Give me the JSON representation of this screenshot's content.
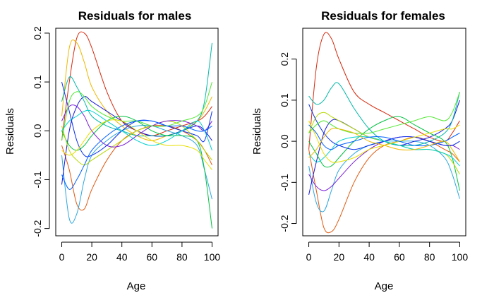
{
  "chart_data": [
    {
      "type": "line",
      "title": "Residuals for males",
      "xlabel": "Age",
      "ylabel": "Residuals",
      "xlim": [
        -4,
        104
      ],
      "ylim": [
        -0.215,
        0.21
      ],
      "xticks": [
        0,
        20,
        40,
        60,
        80,
        100
      ],
      "xtick_labels": [
        "0",
        "20",
        "40",
        "60",
        "80",
        "100"
      ],
      "yticks": [
        -0.2,
        -0.1,
        0.0,
        0.1,
        0.2
      ],
      "ytick_labels": [
        "-0.2",
        "-0.1",
        "0.0",
        "0.1",
        "0.2"
      ],
      "x": [
        0,
        5,
        10,
        15,
        20,
        30,
        40,
        50,
        60,
        70,
        80,
        90,
        95,
        100
      ],
      "series": [
        {
          "color": "#d62a0e",
          "values": [
            -0.02,
            0.1,
            0.19,
            0.2,
            0.17,
            0.08,
            0.02,
            0.0,
            -0.01,
            0.0,
            0.01,
            0.02,
            0.03,
            0.05
          ]
        },
        {
          "color": "#f0b800",
          "values": [
            0.03,
            0.17,
            0.18,
            0.14,
            0.09,
            0.04,
            0.01,
            -0.01,
            -0.02,
            -0.01,
            0.0,
            0.02,
            0.04,
            0.07
          ]
        },
        {
          "color": "#e05a10",
          "values": [
            -0.03,
            -0.08,
            -0.15,
            -0.16,
            -0.12,
            -0.06,
            -0.02,
            0.0,
            0.01,
            0.01,
            0.0,
            -0.02,
            -0.04,
            -0.07
          ]
        },
        {
          "color": "#2ba7e0",
          "values": [
            -0.05,
            -0.18,
            -0.17,
            -0.1,
            -0.05,
            -0.02,
            0.0,
            0.01,
            0.01,
            0.0,
            -0.01,
            -0.03,
            -0.08,
            -0.14
          ]
        },
        {
          "color": "#1515d8",
          "values": [
            -0.11,
            0.0,
            0.05,
            0.07,
            0.06,
            0.04,
            0.02,
            0.0,
            -0.01,
            -0.01,
            0.0,
            0.01,
            0.0,
            -0.02
          ]
        },
        {
          "color": "#00b8a8",
          "values": [
            0.06,
            0.11,
            0.09,
            0.06,
            0.03,
            0.01,
            0.0,
            -0.01,
            -0.01,
            -0.01,
            0.0,
            0.02,
            0.06,
            0.18
          ]
        },
        {
          "color": "#00c040",
          "values": [
            0.0,
            -0.03,
            -0.04,
            -0.03,
            -0.01,
            0.02,
            0.03,
            0.02,
            0.0,
            -0.01,
            -0.01,
            -0.02,
            -0.08,
            -0.2
          ]
        },
        {
          "color": "#b8d800",
          "values": [
            0.01,
            -0.04,
            -0.06,
            -0.07,
            -0.06,
            -0.04,
            -0.02,
            0.0,
            0.01,
            0.02,
            0.01,
            -0.02,
            -0.04,
            -0.06
          ]
        },
        {
          "color": "#7a20d8",
          "values": [
            0.02,
            0.05,
            0.05,
            0.03,
            0.0,
            -0.03,
            -0.03,
            -0.01,
            0.01,
            0.02,
            0.02,
            0.01,
            0.0,
            0.02
          ]
        },
        {
          "color": "#0a30e8",
          "values": [
            0.1,
            0.04,
            -0.02,
            -0.05,
            -0.05,
            -0.03,
            0.0,
            0.02,
            0.02,
            0.01,
            0.0,
            -0.01,
            -0.02,
            0.04
          ]
        },
        {
          "color": "#50e830",
          "values": [
            -0.02,
            0.06,
            0.08,
            0.07,
            0.05,
            0.03,
            0.02,
            0.02,
            0.01,
            0.01,
            0.02,
            0.03,
            0.05,
            0.1
          ]
        },
        {
          "color": "#00d0d0",
          "values": [
            0.0,
            0.02,
            0.03,
            0.04,
            0.04,
            0.02,
            0.0,
            -0.02,
            -0.03,
            -0.02,
            0.0,
            0.02,
            0.0,
            -0.04
          ]
        },
        {
          "color": "#e8e000",
          "values": [
            -0.04,
            -0.05,
            -0.04,
            -0.02,
            0.0,
            0.02,
            0.02,
            0.0,
            -0.02,
            -0.03,
            -0.03,
            -0.04,
            -0.06,
            -0.08
          ]
        },
        {
          "color": "#0060ff",
          "values": [
            -0.09,
            -0.12,
            -0.1,
            -0.07,
            -0.04,
            -0.01,
            0.01,
            0.02,
            0.02,
            0.01,
            0.01,
            0.0,
            0.0,
            0.01
          ]
        }
      ]
    },
    {
      "type": "line",
      "title": "Residuals for females",
      "xlabel": "Age",
      "ylabel": "Residuals",
      "xlim": [
        -4,
        104
      ],
      "ylim": [
        -0.23,
        0.275
      ],
      "xticks": [
        0,
        20,
        40,
        60,
        80,
        100
      ],
      "xtick_labels": [
        "0",
        "20",
        "40",
        "60",
        "80",
        "100"
      ],
      "yticks": [
        -0.2,
        -0.1,
        0.0,
        0.1,
        0.2
      ],
      "ytick_labels": [
        "-0.2",
        "-0.1",
        "0.0",
        "0.1",
        "0.2"
      ],
      "x": [
        0,
        5,
        10,
        15,
        20,
        30,
        40,
        50,
        60,
        70,
        80,
        90,
        95,
        100
      ],
      "series": [
        {
          "color": "#d62a0e",
          "values": [
            -0.02,
            0.18,
            0.26,
            0.25,
            0.2,
            0.12,
            0.09,
            0.07,
            0.05,
            0.03,
            0.01,
            0.0,
            0.02,
            0.05
          ]
        },
        {
          "color": "#e05a10",
          "values": [
            -0.02,
            -0.12,
            -0.21,
            -0.22,
            -0.19,
            -0.1,
            -0.04,
            -0.01,
            0.0,
            0.01,
            0.0,
            -0.02,
            -0.03,
            -0.05
          ]
        },
        {
          "color": "#2ba7e0",
          "values": [
            -0.06,
            -0.15,
            -0.17,
            -0.12,
            -0.07,
            -0.03,
            -0.01,
            0.0,
            0.0,
            0.0,
            -0.01,
            -0.04,
            -0.08,
            -0.14
          ]
        },
        {
          "color": "#1515d8",
          "values": [
            -0.13,
            -0.05,
            0.02,
            0.05,
            0.05,
            0.03,
            0.01,
            0.0,
            -0.01,
            0.0,
            0.01,
            0.03,
            0.05,
            0.1
          ]
        },
        {
          "color": "#00b8a8",
          "values": [
            0.11,
            0.09,
            0.1,
            0.13,
            0.14,
            0.08,
            0.03,
            0.0,
            -0.01,
            -0.01,
            0.0,
            0.02,
            0.05,
            0.12
          ]
        },
        {
          "color": "#00c040",
          "values": [
            0.0,
            -0.03,
            -0.06,
            -0.06,
            -0.04,
            0.0,
            0.03,
            0.05,
            0.06,
            0.04,
            0.02,
            0.0,
            -0.04,
            -0.12
          ]
        },
        {
          "color": "#b8d800",
          "values": [
            0.02,
            0.06,
            0.07,
            0.06,
            0.05,
            0.03,
            0.01,
            0.0,
            -0.01,
            -0.02,
            -0.02,
            -0.03,
            -0.05,
            -0.08
          ]
        },
        {
          "color": "#7a20d8",
          "values": [
            -0.08,
            -0.11,
            -0.12,
            -0.11,
            -0.09,
            -0.05,
            -0.02,
            0.0,
            0.01,
            0.01,
            0.0,
            -0.01,
            -0.01,
            -0.02
          ]
        },
        {
          "color": "#0a30e8",
          "values": [
            0.09,
            0.05,
            0.02,
            0.0,
            -0.01,
            -0.02,
            -0.01,
            0.0,
            0.01,
            0.01,
            0.0,
            -0.01,
            -0.01,
            0.0
          ]
        },
        {
          "color": "#50e830",
          "values": [
            0.02,
            0.04,
            0.05,
            0.04,
            0.03,
            0.02,
            0.02,
            0.03,
            0.04,
            0.05,
            0.06,
            0.05,
            0.07,
            0.12
          ]
        },
        {
          "color": "#00d0d0",
          "values": [
            -0.03,
            -0.05,
            -0.04,
            -0.02,
            0.0,
            0.01,
            0.01,
            0.0,
            -0.01,
            -0.02,
            -0.02,
            -0.03,
            -0.04,
            -0.06
          ]
        },
        {
          "color": "#e8e000",
          "values": [
            0.05,
            0.01,
            -0.03,
            -0.05,
            -0.05,
            -0.04,
            -0.02,
            -0.01,
            0.0,
            0.01,
            0.02,
            0.03,
            0.03,
            0.04
          ]
        },
        {
          "color": "#0060ff",
          "values": [
            0.04,
            0.02,
            -0.01,
            -0.02,
            -0.01,
            0.0,
            0.01,
            0.01,
            0.0,
            -0.01,
            -0.01,
            0.0,
            0.01,
            0.02
          ]
        },
        {
          "color": "#f0b800",
          "values": [
            -0.04,
            -0.02,
            0.01,
            0.03,
            0.03,
            0.02,
            0.0,
            -0.01,
            -0.02,
            -0.02,
            -0.01,
            0.0,
            -0.02,
            -0.05
          ]
        }
      ]
    }
  ]
}
